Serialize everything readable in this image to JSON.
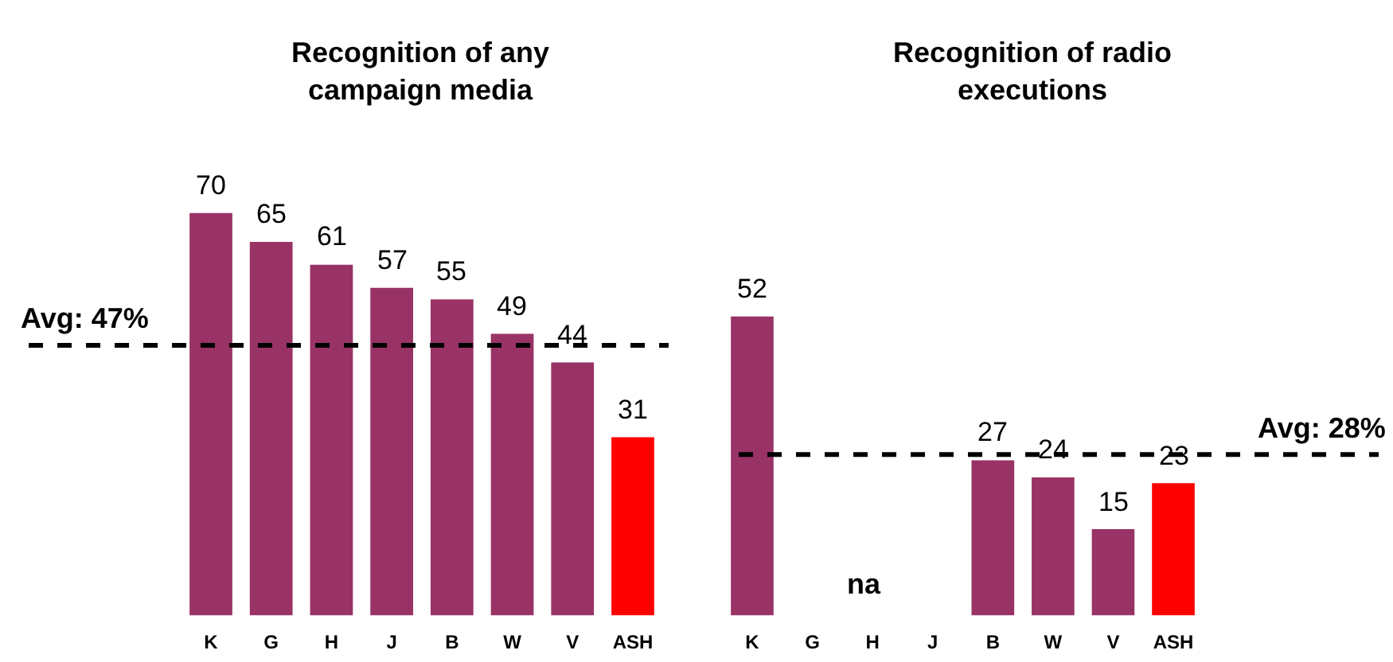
{
  "chart_data": [
    {
      "type": "bar",
      "title": "Recognition of any campaign media",
      "categories": [
        "K",
        "G",
        "H",
        "J",
        "B",
        "W",
        "V",
        "ASH"
      ],
      "values": [
        70,
        65,
        61,
        57,
        55,
        49,
        44,
        31
      ],
      "colors": [
        "#993366",
        "#993366",
        "#993366",
        "#993366",
        "#993366",
        "#993366",
        "#993366",
        "#ff0000"
      ],
      "data_labels": true,
      "ref_lines": [
        {
          "axis": "y",
          "value": 47,
          "label": "Avg: 47%",
          "color": "#000000",
          "line_style": "dashed"
        }
      ],
      "tick_labels": "x"
    },
    {
      "type": "bar",
      "title": "Recognition of radio executions",
      "categories": [
        "K",
        "G",
        "H",
        "J",
        "B",
        "W",
        "V",
        "ASH"
      ],
      "values": [
        52,
        null,
        null,
        null,
        27,
        24,
        15,
        23
      ],
      "colors": [
        "#993366",
        null,
        null,
        null,
        "#993366",
        "#993366",
        "#993366",
        "#ff0000"
      ],
      "data_labels": true,
      "annotations": [
        "na"
      ],
      "ref_lines": [
        {
          "axis": "y",
          "value": 28,
          "label": "Avg: 28%",
          "color": "#000000",
          "line_style": "dashed"
        }
      ],
      "tick_labels": "x"
    }
  ]
}
